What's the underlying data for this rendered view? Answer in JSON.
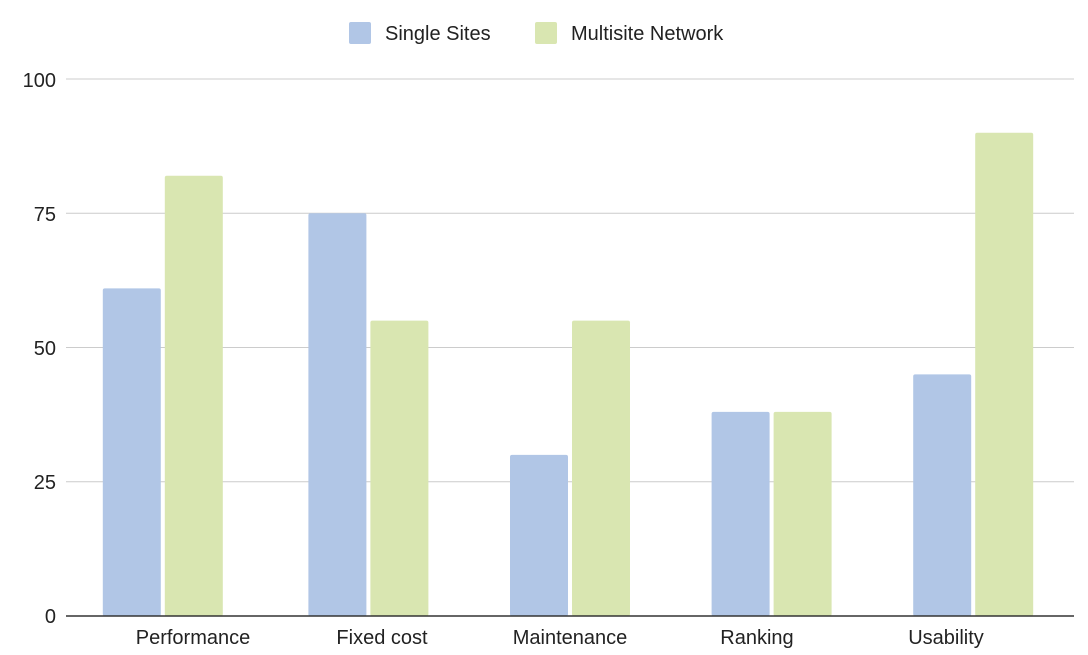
{
  "chart_data": {
    "type": "bar",
    "categories": [
      "Performance",
      "Fixed cost",
      "Maintenance",
      "Ranking",
      "Usability"
    ],
    "series": [
      {
        "name": "Single Sites",
        "values": [
          61,
          75,
          30,
          38,
          45
        ],
        "color": "#b1c6e6"
      },
      {
        "name": "Multisite Network",
        "values": [
          82,
          55,
          55,
          38,
          90
        ],
        "color": "#d9e6b1"
      }
    ],
    "yticks": [
      "0",
      "25",
      "50",
      "75",
      "100"
    ],
    "ylim": [
      0,
      100
    ],
    "grid": true,
    "legend": "top-center",
    "colors": {
      "gridline": "#cccccc",
      "axis": "#333333",
      "text": "#222222"
    }
  }
}
